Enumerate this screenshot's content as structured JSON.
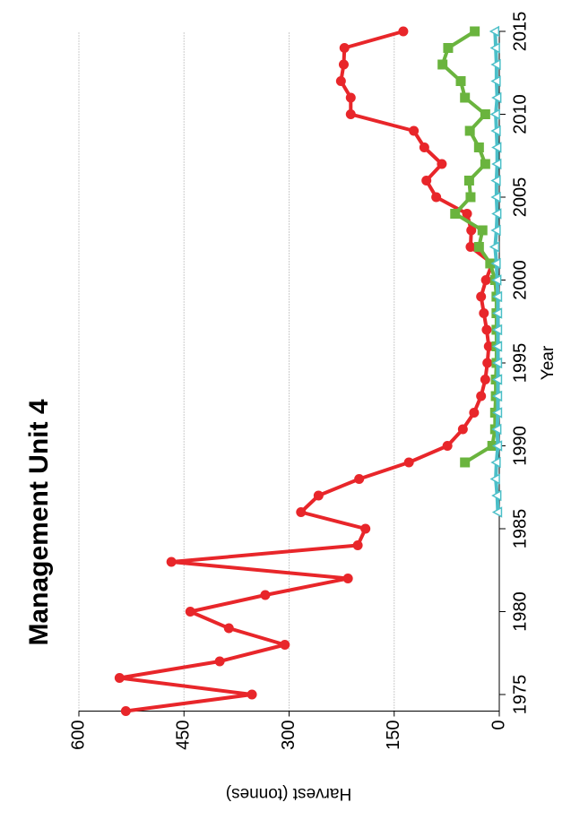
{
  "chart_data": {
    "type": "line",
    "title": "Management Unit 4",
    "xlabel": "Year",
    "ylabel": "Harvest (tonnes)",
    "x": [
      1974,
      1975,
      1976,
      1977,
      1978,
      1979,
      1980,
      1981,
      1982,
      1983,
      1984,
      1985,
      1986,
      1987,
      1988,
      1989,
      1990,
      1991,
      1992,
      1993,
      1994,
      1995,
      1996,
      1997,
      1998,
      1999,
      2000,
      2001,
      2002,
      2003,
      2004,
      2005,
      2006,
      2007,
      2008,
      2009,
      2010,
      2011,
      2012,
      2013,
      2014,
      2015
    ],
    "series": [
      {
        "color": "#e8262a",
        "marker": "circle",
        "values": [
          533,
          353,
          542,
          399,
          306,
          386,
          441,
          334,
          216,
          468,
          202,
          191,
          283,
          258,
          200,
          129,
          74,
          52,
          36,
          26,
          20,
          17,
          15,
          18,
          22,
          26,
          19,
          10,
          41,
          40,
          46,
          90,
          104,
          82,
          107,
          122,
          212,
          212,
          226,
          222,
          221,
          137
        ]
      },
      {
        "color": "#6ab43e",
        "marker": "square",
        "values": [
          null,
          null,
          null,
          null,
          null,
          null,
          null,
          null,
          null,
          null,
          null,
          null,
          null,
          null,
          null,
          49,
          10,
          6,
          6,
          5,
          5,
          4,
          4,
          4,
          4,
          4,
          6,
          13,
          29,
          24,
          63,
          41,
          43,
          20,
          29,
          42,
          20,
          49,
          55,
          81,
          73,
          35
        ]
      },
      {
        "color": "#4bbfc8",
        "marker": "triangle",
        "values": [
          null,
          null,
          null,
          null,
          null,
          null,
          null,
          null,
          null,
          null,
          null,
          null,
          2,
          3,
          5,
          4,
          2,
          3,
          2,
          2,
          2,
          2,
          2,
          2,
          2,
          2,
          3,
          4,
          6,
          4,
          3,
          4,
          4,
          3,
          3,
          4,
          5,
          3,
          4,
          4,
          5,
          6
        ]
      }
    ],
    "xlim": [
      1974,
      2015
    ],
    "xticks": [
      1975,
      1980,
      1985,
      1990,
      1995,
      2000,
      2005,
      2010,
      2015
    ],
    "ylim": [
      0,
      600
    ],
    "yticks": [
      0,
      150,
      300,
      450,
      600
    ],
    "grid": true
  }
}
